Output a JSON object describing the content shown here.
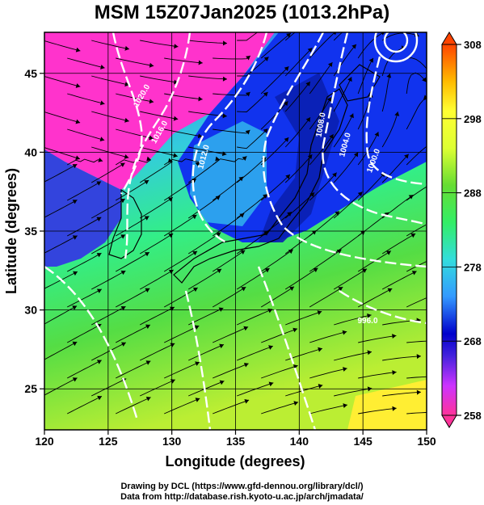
{
  "title": "MSM 15Z07Jan2025 (1013.2hPa)",
  "chart_data": {
    "type": "heatmap",
    "title": "MSM 15Z07Jan2025 (1013.2hPa)",
    "xlabel": "Longitude (degrees)",
    "ylabel": "Latitude  (degrees)",
    "xlim": [
      120,
      150
    ],
    "ylim": [
      22.4,
      47.6
    ],
    "xticks": [
      "120",
      "125",
      "130",
      "135",
      "140",
      "145",
      "150"
    ],
    "yticks": [
      "25",
      "30",
      "35",
      "40",
      "45"
    ],
    "grid": true,
    "colorbar": {
      "min": 258,
      "max": 308,
      "ticks": [
        "258",
        "268",
        "278",
        "288",
        "298",
        "308"
      ],
      "colors": [
        "#ff3399",
        "#ff66cc",
        "#cc33ff",
        "#6633ff",
        "#0000cc",
        "#2255ff",
        "#3399ff",
        "#33cccc",
        "#33ffcc",
        "#33ff66",
        "#33dd33",
        "#99ff33",
        "#ccff33",
        "#ffff33",
        "#ffcc00",
        "#ff6600",
        "#ff3300"
      ]
    },
    "isobar_labels": [
      "1020.0",
      "1016.0",
      "1012.0",
      "1008.0",
      "1004.0",
      "1000.0",
      "996.0"
    ]
  },
  "credits": {
    "line1": "Drawing by DCL (https://www.gfd-dennou.org/library/dcl/)",
    "line2": "Data from http://database.rish.kyoto-u.ac.jp/arch/jmadata/"
  }
}
